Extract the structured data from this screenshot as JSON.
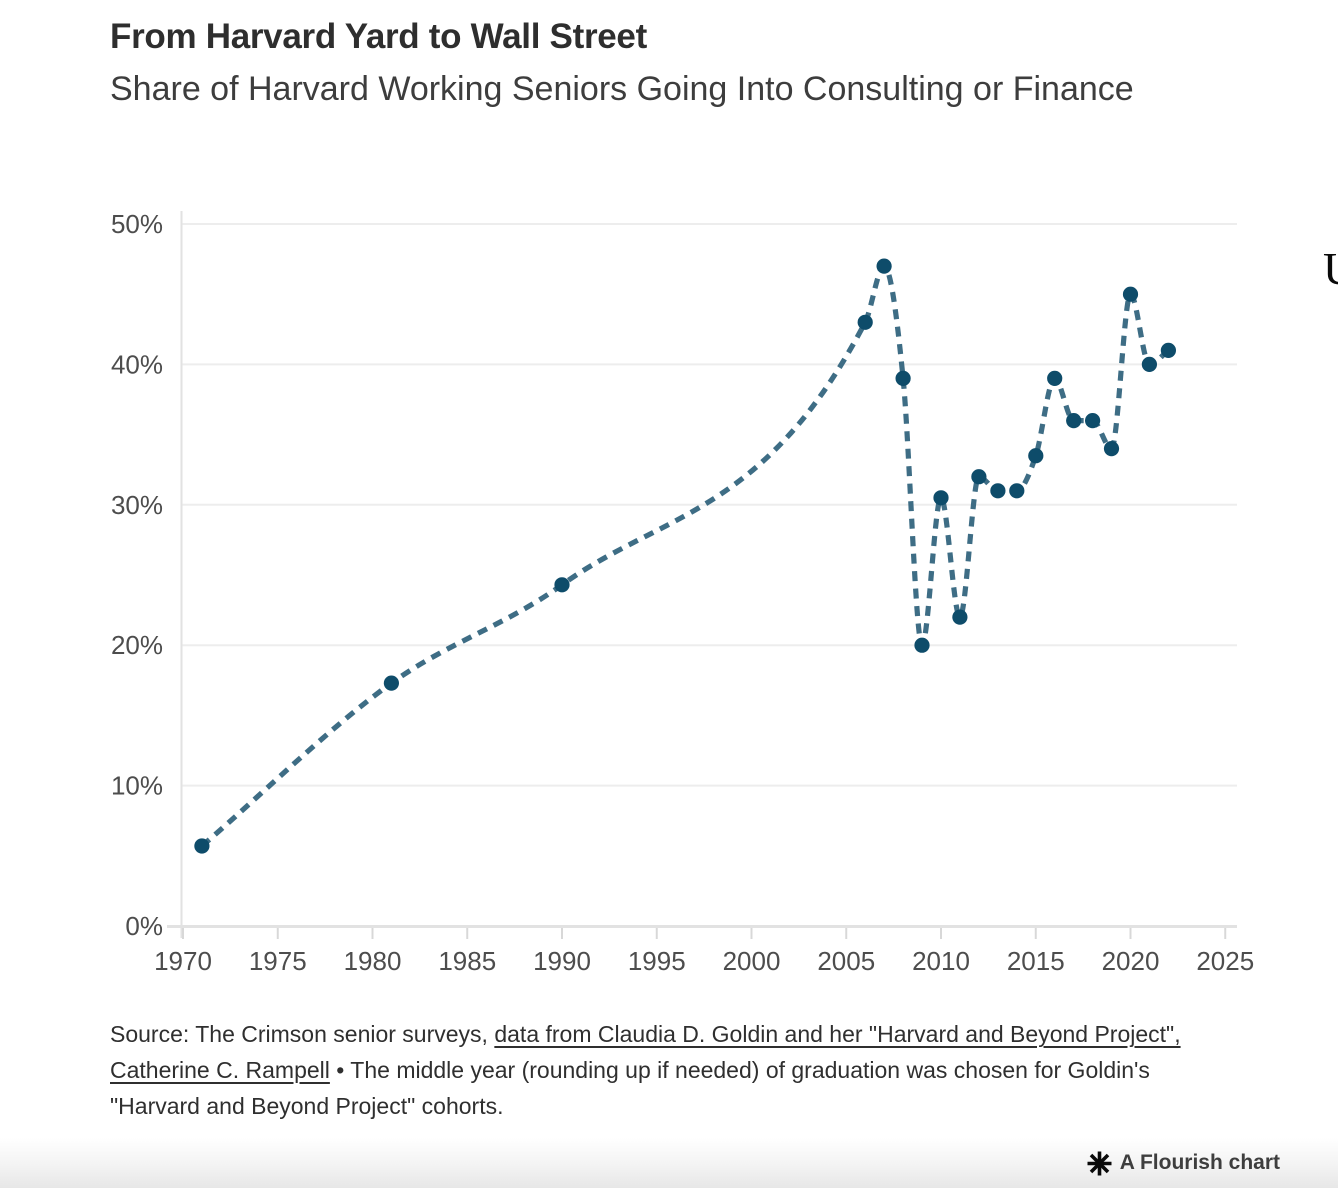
{
  "header": {
    "title": "From Harvard Yard to Wall Street",
    "subtitle": "Share of Harvard Working Seniors Going Into Consulting or Finance"
  },
  "chart_data": {
    "type": "line",
    "title": "From Harvard Yard to Wall Street",
    "subtitle": "Share of Harvard Working Seniors Going Into Consulting or Finance",
    "series": [
      {
        "name": "Share of working seniors going into consulting or finance",
        "x": [
          1971,
          1981,
          1990,
          2006,
          2007,
          2008,
          2009,
          2010,
          2011,
          2012,
          2013,
          2014,
          2015,
          2016,
          2017,
          2018,
          2019,
          2020,
          2021,
          2022
        ],
        "y": [
          5.7,
          17.3,
          24.3,
          43,
          47,
          39,
          20,
          30.5,
          22,
          32,
          31,
          31,
          33.5,
          39,
          36,
          36,
          34,
          45,
          40,
          41
        ]
      }
    ],
    "x_ticks": [
      1970,
      1975,
      1980,
      1985,
      1990,
      1995,
      2000,
      2005,
      2010,
      2015,
      2020,
      2025
    ],
    "y_ticks": [
      0,
      10,
      20,
      30,
      40,
      50
    ],
    "y_tick_suffix": "%",
    "xlim": [
      1970,
      2025
    ],
    "ylim": [
      0,
      50
    ],
    "grid": "horizontal",
    "line_style": "dashed",
    "curve": "monotone",
    "legend_position": "none",
    "colors": {
      "line": "#3e6d85",
      "marker": "#0e4c6a",
      "gridline": "#ededed",
      "axis_line": "#e2e2e2",
      "tick_mark": "#d8d8d8",
      "tick_label": "#4d4d4d"
    }
  },
  "source": {
    "segments": [
      {
        "text": "Source: The Crimson senior surveys, ",
        "link": false
      },
      {
        "text": "data from Claudia D. Goldin and her \"Harvard and Beyond Project\",",
        "link": true
      },
      {
        "text": " ",
        "link": false
      },
      {
        "text": "Catherine C. Rampell",
        "link": true
      },
      {
        "text": " • The middle year (rounding up if needed) of graduation was chosen for Goldin's \"Harvard and Beyond Project\" cohorts.",
        "link": false
      }
    ]
  },
  "footer": {
    "credit_label": "A Flourish chart"
  },
  "edge_fragment": {
    "text": "U"
  }
}
